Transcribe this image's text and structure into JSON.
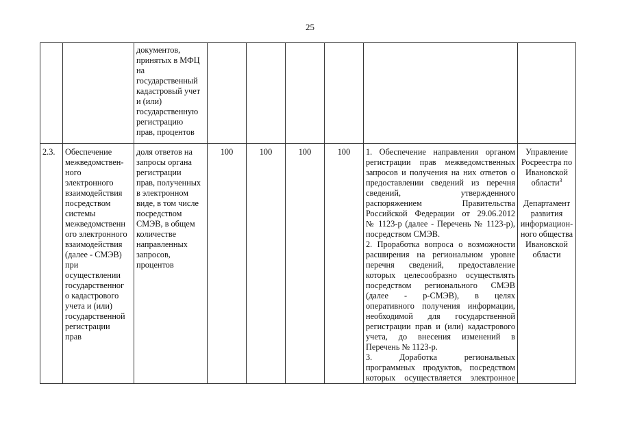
{
  "page_number": "25",
  "row_continued": {
    "indicator_lines": [
      "документов,",
      "принятых в МФЦ",
      "на",
      "государственный",
      "кадастровый учет",
      "и (или)",
      "государственную",
      "регистрацию",
      "прав, процентов"
    ]
  },
  "row_2_3": {
    "number": "2.3.",
    "task_lines": [
      "Обеспечение",
      "межведомствен-",
      "ного",
      "электронного",
      "взаимодействия",
      "посредством",
      "системы",
      "межведомственн",
      "ого электронного",
      "взаимодействия",
      "(далее - СМЭВ)",
      "при",
      "осуществлении",
      "государственног",
      "о кадастрового",
      "учета и (или)",
      "государственной",
      "регистрации",
      "прав"
    ],
    "indicator_lines": [
      "доля ответов на",
      "запросы органа",
      "регистрации",
      "прав, полученных",
      "в электронном",
      "виде, в том числе",
      "посредством",
      "СМЭВ, в общем",
      "количестве",
      "направленных",
      "запросов,",
      "процентов"
    ],
    "values": [
      "100",
      "100",
      "100",
      "100"
    ],
    "action_lines": [
      {
        "t": "1. Обеспечение направления органом",
        "j": true
      },
      {
        "t": "регистрации прав межведомственных",
        "j": true
      },
      {
        "t": "запросов и получения на них ответов о",
        "j": true
      },
      {
        "t": "предоставлении сведений из перечня",
        "j": true
      },
      {
        "t": "сведений, утвержденного",
        "j": true
      },
      {
        "t": "распоряжением Правительства",
        "j": true
      },
      {
        "t": "Российской Федерации от 29.06.2012",
        "j": true
      },
      {
        "t": "№ 1123-р (далее - Перечень № 1123-р),",
        "j": true
      },
      {
        "t": "посредством СМЭВ.",
        "j": false
      },
      {
        "t": "2. Проработка вопроса о возможности",
        "j": true
      },
      {
        "t": "расширения на региональном уровне",
        "j": true
      },
      {
        "t": "перечня сведений, предоставление",
        "j": true
      },
      {
        "t": "которых целесообразно осуществлять",
        "j": true
      },
      {
        "t": "посредством регионального СМЭВ",
        "j": true
      },
      {
        "t": "(далее - р-СМЭВ), в целях",
        "j": true
      },
      {
        "t": "оперативного получения информации,",
        "j": true
      },
      {
        "t": "необходимой для государственной",
        "j": true
      },
      {
        "t": "регистрации прав и (или) кадастрового",
        "j": true
      },
      {
        "t": "учета, до внесения изменений в",
        "j": true
      },
      {
        "t": "Перечень № 1123-р.",
        "j": false
      },
      {
        "t": "3. Доработка региональных",
        "j": true
      },
      {
        "t": "программных продуктов, посредством",
        "j": true
      },
      {
        "t": "которых осуществляется электронное",
        "j": true
      }
    ],
    "responsible": {
      "org1_lines": [
        "Управление",
        "Росреестра по",
        "Ивановской",
        "области"
      ],
      "org1_footnote": "3",
      "org2_lines": [
        "Департамент",
        "развития",
        "информацион-",
        "ного общества",
        "Ивановской",
        "области"
      ]
    }
  }
}
